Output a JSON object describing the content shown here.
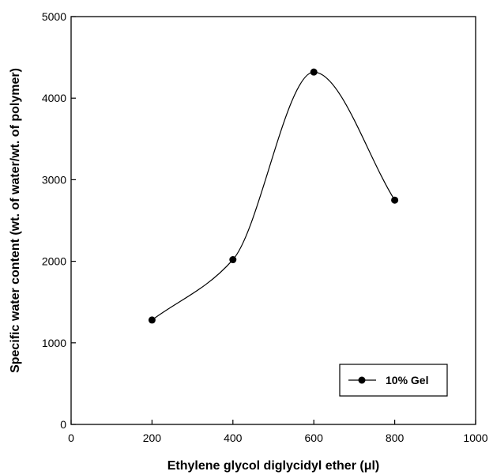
{
  "chart_data": {
    "type": "line",
    "title": "",
    "xlabel": "Ethylene glycol diglycidyl ether (μl)",
    "ylabel": "Specific water content (wt. of water/wt. of polymer)",
    "xlim": [
      0,
      1000
    ],
    "ylim": [
      0,
      5000
    ],
    "xticks": [
      0,
      200,
      400,
      600,
      800,
      1000
    ],
    "yticks": [
      0,
      1000,
      2000,
      3000,
      4000,
      5000
    ],
    "grid": false,
    "legend_position": "bottom-right",
    "series": [
      {
        "name": "10% Gel",
        "x": [
          200,
          400,
          600,
          800
        ],
        "y": [
          1280,
          2020,
          4320,
          2750
        ],
        "color": "#000000",
        "marker": "filled-circle",
        "line": "smooth"
      }
    ]
  }
}
